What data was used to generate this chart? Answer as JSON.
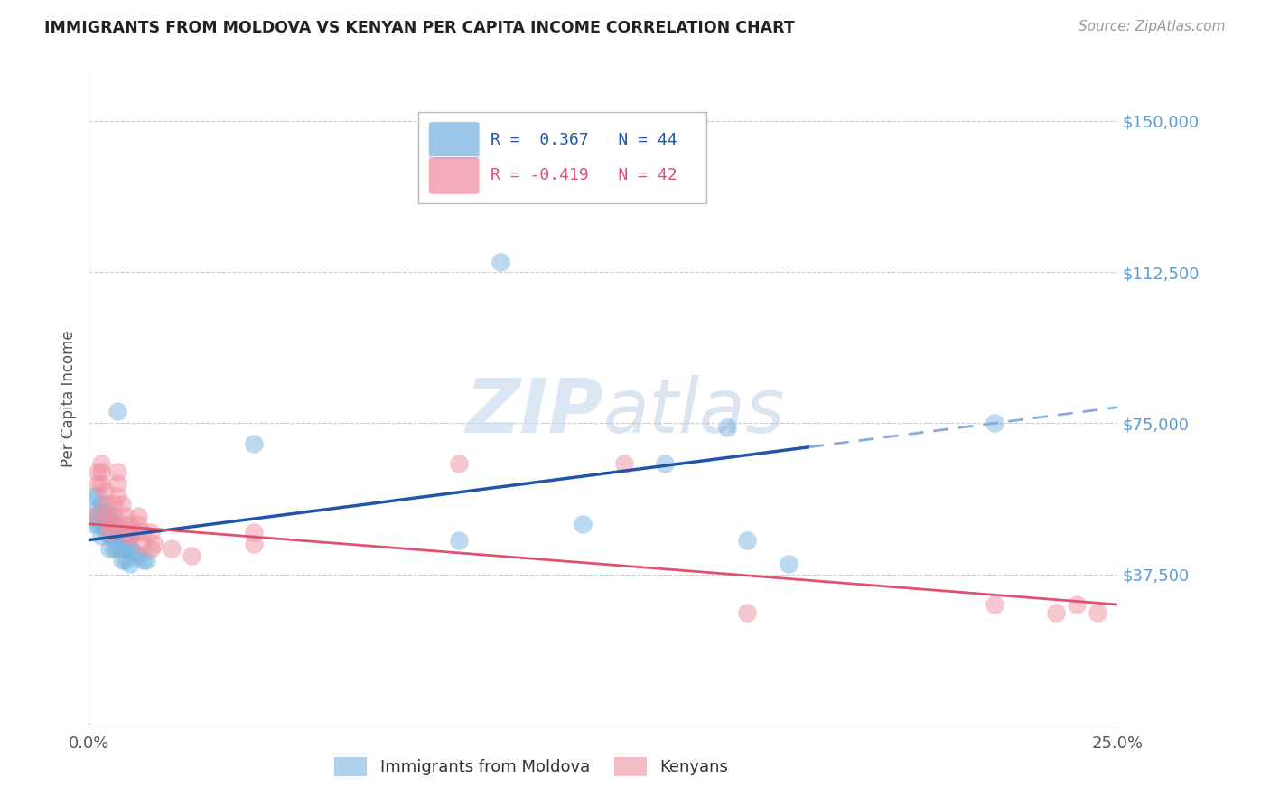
{
  "title": "IMMIGRANTS FROM MOLDOVA VS KENYAN PER CAPITA INCOME CORRELATION CHART",
  "source": "Source: ZipAtlas.com",
  "ylabel": "Per Capita Income",
  "yticks": [
    37500,
    75000,
    112500,
    150000
  ],
  "ytick_labels": [
    "$37,500",
    "$75,000",
    "$112,500",
    "$150,000"
  ],
  "ylim": [
    0,
    162000
  ],
  "xlim": [
    0.0,
    0.25
  ],
  "legend_blue_r": "R =  0.367",
  "legend_blue_n": "N = 44",
  "legend_pink_r": "R = -0.419",
  "legend_pink_n": "N = 42",
  "blue_color": "#7ab4e0",
  "pink_color": "#f090a0",
  "blue_line_color": "#2255aa",
  "pink_line_color": "#e05070",
  "blue_scatter": [
    [
      0.001,
      57000
    ],
    [
      0.001,
      53000
    ],
    [
      0.001,
      50000
    ],
    [
      0.002,
      57000
    ],
    [
      0.002,
      52000
    ],
    [
      0.002,
      50000
    ],
    [
      0.003,
      55000
    ],
    [
      0.003,
      53000
    ],
    [
      0.003,
      50000
    ],
    [
      0.003,
      47000
    ],
    [
      0.004,
      53000
    ],
    [
      0.004,
      50000
    ],
    [
      0.004,
      48000
    ],
    [
      0.005,
      52000
    ],
    [
      0.005,
      50000
    ],
    [
      0.005,
      47000
    ],
    [
      0.005,
      44000
    ],
    [
      0.006,
      50000
    ],
    [
      0.006,
      47000
    ],
    [
      0.006,
      44000
    ],
    [
      0.007,
      78000
    ],
    [
      0.007,
      48000
    ],
    [
      0.007,
      44000
    ],
    [
      0.008,
      44000
    ],
    [
      0.008,
      41000
    ],
    [
      0.009,
      47000
    ],
    [
      0.009,
      44000
    ],
    [
      0.009,
      41000
    ],
    [
      0.01,
      47000
    ],
    [
      0.01,
      44000
    ],
    [
      0.01,
      40000
    ],
    [
      0.011,
      43000
    ],
    [
      0.012,
      42000
    ],
    [
      0.013,
      41000
    ],
    [
      0.014,
      41000
    ],
    [
      0.04,
      70000
    ],
    [
      0.09,
      46000
    ],
    [
      0.1,
      115000
    ],
    [
      0.12,
      50000
    ],
    [
      0.14,
      65000
    ],
    [
      0.155,
      74000
    ],
    [
      0.16,
      46000
    ],
    [
      0.17,
      40000
    ],
    [
      0.22,
      75000
    ]
  ],
  "pink_scatter": [
    [
      0.001,
      52000
    ],
    [
      0.002,
      63000
    ],
    [
      0.002,
      60000
    ],
    [
      0.003,
      65000
    ],
    [
      0.003,
      63000
    ],
    [
      0.003,
      60000
    ],
    [
      0.004,
      58000
    ],
    [
      0.004,
      55000
    ],
    [
      0.004,
      52000
    ],
    [
      0.005,
      50000
    ],
    [
      0.005,
      48000
    ],
    [
      0.006,
      55000
    ],
    [
      0.006,
      52000
    ],
    [
      0.006,
      50000
    ],
    [
      0.007,
      63000
    ],
    [
      0.007,
      60000
    ],
    [
      0.007,
      57000
    ],
    [
      0.008,
      55000
    ],
    [
      0.008,
      50000
    ],
    [
      0.009,
      52000
    ],
    [
      0.009,
      48000
    ],
    [
      0.01,
      50000
    ],
    [
      0.01,
      47000
    ],
    [
      0.011,
      48000
    ],
    [
      0.012,
      52000
    ],
    [
      0.012,
      50000
    ],
    [
      0.013,
      48000
    ],
    [
      0.013,
      45000
    ],
    [
      0.015,
      48000
    ],
    [
      0.015,
      44000
    ],
    [
      0.016,
      45000
    ],
    [
      0.02,
      44000
    ],
    [
      0.025,
      42000
    ],
    [
      0.04,
      48000
    ],
    [
      0.04,
      45000
    ],
    [
      0.09,
      65000
    ],
    [
      0.13,
      65000
    ],
    [
      0.16,
      28000
    ],
    [
      0.22,
      30000
    ],
    [
      0.235,
      28000
    ],
    [
      0.24,
      30000
    ],
    [
      0.245,
      28000
    ]
  ],
  "background_color": "#ffffff",
  "watermark_zip": "ZIP",
  "watermark_atlas": "atlas",
  "grid_color": "#cccccc"
}
